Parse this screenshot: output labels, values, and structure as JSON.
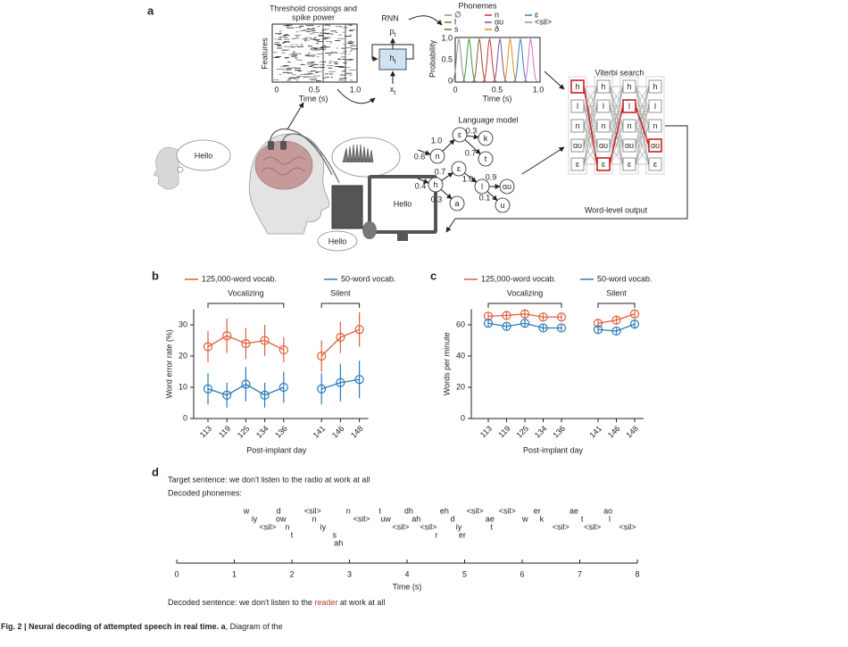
{
  "figure": {
    "panel_labels": [
      "a",
      "b",
      "c",
      "d"
    ],
    "caption": {
      "bold": "Fig. 2 | Neural decoding of attempted speech in real time. a",
      "text": ", Diagram of the"
    }
  },
  "panel_a": {
    "heatmap": {
      "title": [
        "Threshold crossings and",
        "spike power"
      ],
      "ylabel": "Features",
      "xticks": [
        "0",
        "0.5",
        "1.0"
      ],
      "xlabel": "Time (s)"
    },
    "rnn": {
      "label": "RNN",
      "output": "p",
      "output_sub": "t",
      "hidden": "h",
      "hidden_sub": "t",
      "input": "x",
      "input_sub": "t"
    },
    "phonemes": {
      "title": "Phonemes",
      "legend": [
        {
          "name": "∅",
          "color": "#8c8c8c"
        },
        {
          "name": "l",
          "color": "#3a9a3a"
        },
        {
          "name": "s",
          "color": "#8b5a2b"
        },
        {
          "name": "n",
          "color": "#d03030"
        },
        {
          "name": "ɑʊ",
          "color": "#7b4fa0"
        },
        {
          "name": "ð",
          "color": "#e08a20"
        },
        {
          "name": "ɛ",
          "color": "#3080c0"
        },
        {
          "name": "<sil>",
          "color": "#d070c0"
        }
      ],
      "ylabel": "Probability",
      "yticks": [
        "1.0",
        "0.5",
        "0"
      ],
      "xticks": [
        "0",
        "0.5",
        "1.0"
      ],
      "xlabel": "Time (s)"
    },
    "viterbi": {
      "title": "Viterbi search",
      "states": [
        "h",
        "l",
        "n",
        "ɑʊ",
        "ɛ"
      ],
      "output": "Word-level output"
    },
    "language_model": {
      "title": "Language model",
      "nodes": [
        "n",
        "ɛ",
        "k",
        "t",
        "h",
        "ɛ",
        "l",
        "ɑʊ",
        "a",
        "u"
      ],
      "weights": [
        "1.0",
        "0.3",
        "0.6",
        "0.7",
        "0.7",
        "0.4",
        "1.0",
        "0.9",
        "0.3",
        "0.1"
      ]
    },
    "speech": {
      "thought": "Hello",
      "screen": "Hello",
      "spoken": "Hello"
    }
  },
  "chart_data": [
    {
      "type": "line",
      "ylabel": "Word error rate (%)",
      "xlabel": "Post-implant day",
      "categories": [
        "113",
        "119",
        "125",
        "134",
        "136",
        null,
        "141",
        "146",
        "148"
      ],
      "groups": [
        "Vocalizing",
        "Silent"
      ],
      "series": [
        {
          "name": "125,000-word vocab.",
          "color": "#e0603a",
          "values": [
            23,
            26.5,
            24,
            25,
            22,
            null,
            20,
            26,
            28.5
          ],
          "errors": [
            5,
            5.5,
            5,
            5,
            4,
            null,
            5,
            5,
            5.5
          ]
        },
        {
          "name": "50-word vocab.",
          "color": "#2b7bba",
          "values": [
            9.5,
            7.5,
            11,
            7.5,
            10,
            null,
            9.5,
            11.5,
            12.5
          ],
          "errors": [
            5,
            4,
            5.5,
            4,
            5,
            null,
            5,
            6,
            6
          ]
        }
      ],
      "ylim": [
        0,
        35
      ],
      "yticks": [
        0,
        10,
        20,
        30
      ]
    },
    {
      "type": "line",
      "ylabel": "Words per minute",
      "xlabel": "Post-implant day",
      "categories": [
        "113",
        "119",
        "125",
        "134",
        "136",
        null,
        "141",
        "146",
        "148"
      ],
      "groups": [
        "Vocalizing",
        "Silent"
      ],
      "series": [
        {
          "name": "125,000-word vocab.",
          "color": "#e0603a",
          "values": [
            65.5,
            66,
            67,
            65,
            65,
            null,
            61,
            63,
            67
          ],
          "errors": [
            2,
            2.5,
            2.5,
            2,
            2,
            null,
            3,
            2.5,
            2.5
          ]
        },
        {
          "name": "50-word vocab.",
          "color": "#2b7bba",
          "values": [
            61,
            59,
            61,
            58,
            58,
            null,
            57,
            56,
            60.5
          ],
          "errors": [
            2,
            2,
            2.5,
            2,
            2,
            null,
            2.5,
            2,
            3
          ]
        }
      ],
      "ylim": [
        0,
        70
      ],
      "yticks": [
        0,
        20,
        40,
        60
      ]
    }
  ],
  "panel_d": {
    "target": "Target sentence: we don't listen to the radio at work at all",
    "decoded_label": "Decoded phonemes:",
    "phonemes": [
      {
        "label": "w",
        "time": 1.21
      },
      {
        "label": "iy",
        "time": 1.35
      },
      {
        "label": "<sil>",
        "time": 1.58
      },
      {
        "label": "d",
        "time": 1.77
      },
      {
        "label": "ow",
        "time": 1.81
      },
      {
        "label": "n",
        "time": 1.92
      },
      {
        "label": "t",
        "time": 2.0
      },
      {
        "label": "<sil>",
        "time": 2.36
      },
      {
        "label": "n",
        "time": 2.39,
        "color": "#c0392b"
      },
      {
        "label": "iy",
        "time": 2.54,
        "color": "#c0392b"
      },
      {
        "label": "s",
        "time": 2.74
      },
      {
        "label": "ah",
        "time": 2.81
      },
      {
        "label": "n",
        "time": 2.98
      },
      {
        "label": "<sil>",
        "time": 3.21
      },
      {
        "label": "t",
        "time": 3.53
      },
      {
        "label": "uw",
        "time": 3.63
      },
      {
        "label": "<sil>",
        "time": 3.89
      },
      {
        "label": "dh",
        "time": 4.03
      },
      {
        "label": "ah",
        "time": 4.16
      },
      {
        "label": "<sil>",
        "time": 4.37
      },
      {
        "label": "r",
        "time": 4.51
      },
      {
        "label": "eh",
        "time": 4.65,
        "color": "#c0392b"
      },
      {
        "label": "d",
        "time": 4.79
      },
      {
        "label": "iy",
        "time": 4.9
      },
      {
        "label": "er",
        "time": 4.96,
        "color": "#c0392b"
      },
      {
        "label": "<sil>",
        "time": 5.18
      },
      {
        "label": "ae",
        "time": 5.44
      },
      {
        "label": "t",
        "time": 5.47
      },
      {
        "label": "<sil>",
        "time": 5.74
      },
      {
        "label": "w",
        "time": 6.05
      },
      {
        "label": "er",
        "time": 6.26
      },
      {
        "label": "k",
        "time": 6.34
      },
      {
        "label": "<sil>",
        "time": 6.67
      },
      {
        "label": "ae",
        "time": 6.9
      },
      {
        "label": "t",
        "time": 7.04
      },
      {
        "label": "<sil>",
        "time": 7.22
      },
      {
        "label": "ao",
        "time": 7.49
      },
      {
        "label": "l",
        "time": 7.52
      },
      {
        "label": "<sil>",
        "time": 7.83
      }
    ],
    "xlim": [
      0,
      8
    ],
    "xticks": [
      0,
      1,
      2,
      3,
      4,
      5,
      6,
      7,
      8
    ],
    "xlabel": "Time (s)",
    "decoded_sentence": [
      "Decoded sentence: we don't listen to the ",
      "reader",
      " at work at all"
    ],
    "error_color": "#c0392b"
  }
}
